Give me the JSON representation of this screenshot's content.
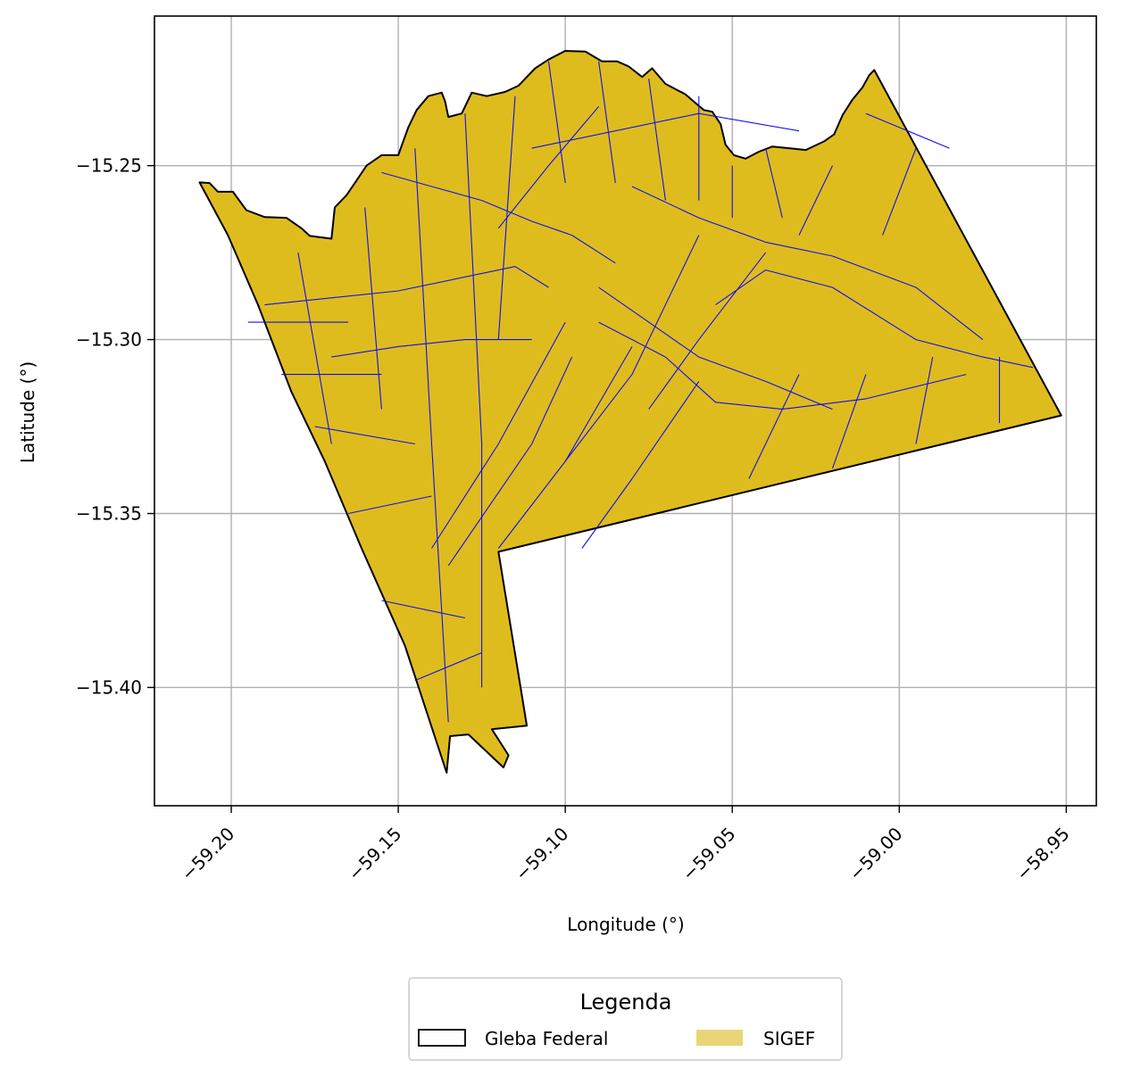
{
  "chart_data": {
    "type": "map",
    "xlabel": "Longitude (°)",
    "ylabel": "Latitude (°)",
    "xlim": [
      -59.223,
      -58.941
    ],
    "ylim": [
      -15.434,
      -15.207
    ],
    "x_ticks": [
      {
        "value": -59.2,
        "label": "−59.20"
      },
      {
        "value": -59.15,
        "label": "−59.15"
      },
      {
        "value": -59.1,
        "label": "−59.10"
      },
      {
        "value": -59.05,
        "label": "−59.05"
      },
      {
        "value": -59.0,
        "label": "−59.00"
      },
      {
        "value": -58.95,
        "label": "−58.95"
      }
    ],
    "y_ticks": [
      {
        "value": -15.25,
        "label": "−15.25"
      },
      {
        "value": -15.3,
        "label": "−15.30"
      },
      {
        "value": -15.35,
        "label": "−15.35"
      },
      {
        "value": -15.4,
        "label": "−15.40"
      }
    ],
    "grid": true,
    "colors": {
      "gleba_fill": "#dfbc1e",
      "gleba_edge": "#000000",
      "sigef_edge": "#1010ee",
      "legend_sigef": "#e8d577",
      "grid": "#b0b0b0"
    },
    "gleba_boundary": [
      [
        -59.2095,
        -15.2548
      ],
      [
        -59.2065,
        -15.255
      ],
      [
        -59.204,
        -15.2575
      ],
      [
        -59.1995,
        -15.2575
      ],
      [
        -59.1955,
        -15.2628
      ],
      [
        -59.19,
        -15.2648
      ],
      [
        -59.1835,
        -15.265
      ],
      [
        -59.179,
        -15.268
      ],
      [
        -59.1765,
        -15.2702
      ],
      [
        -59.17,
        -15.271
      ],
      [
        -59.169,
        -15.262
      ],
      [
        -59.1655,
        -15.2585
      ],
      [
        -59.163,
        -15.255
      ],
      [
        -59.1595,
        -15.25
      ],
      [
        -59.155,
        -15.247
      ],
      [
        -59.15,
        -15.247
      ],
      [
        -59.147,
        -15.239
      ],
      [
        -59.1445,
        -15.234
      ],
      [
        -59.141,
        -15.23
      ],
      [
        -59.137,
        -15.229
      ],
      [
        -59.136,
        -15.2315
      ],
      [
        -59.135,
        -15.236
      ],
      [
        -59.131,
        -15.235
      ],
      [
        -59.128,
        -15.229
      ],
      [
        -59.1235,
        -15.23
      ],
      [
        -59.118,
        -15.2288
      ],
      [
        -59.114,
        -15.227
      ],
      [
        -59.109,
        -15.222
      ],
      [
        -59.105,
        -15.2195
      ],
      [
        -59.1,
        -15.217
      ],
      [
        -59.094,
        -15.2172
      ],
      [
        -59.089,
        -15.22
      ],
      [
        -59.0845,
        -15.22
      ],
      [
        -59.081,
        -15.2215
      ],
      [
        -59.077,
        -15.2245
      ],
      [
        -59.074,
        -15.222
      ],
      [
        -59.07,
        -15.2265
      ],
      [
        -59.064,
        -15.2295
      ],
      [
        -59.061,
        -15.232
      ],
      [
        -59.0585,
        -15.234
      ],
      [
        -59.056,
        -15.2345
      ],
      [
        -59.0535,
        -15.238
      ],
      [
        -59.052,
        -15.244
      ],
      [
        -59.0495,
        -15.247
      ],
      [
        -59.046,
        -15.248
      ],
      [
        -59.042,
        -15.246
      ],
      [
        -59.038,
        -15.2445
      ],
      [
        -59.033,
        -15.245
      ],
      [
        -59.028,
        -15.2455
      ],
      [
        -59.0225,
        -15.243
      ],
      [
        -59.0195,
        -15.241
      ],
      [
        -59.017,
        -15.2355
      ],
      [
        -59.014,
        -15.231
      ],
      [
        -59.011,
        -15.2275
      ],
      [
        -59.009,
        -15.224
      ],
      [
        -59.0075,
        -15.2225
      ],
      [
        -58.9515,
        -15.3218
      ],
      [
        -59.12,
        -15.361
      ],
      [
        -59.1115,
        -15.411
      ],
      [
        -59.122,
        -15.412
      ],
      [
        -59.117,
        -15.4195
      ],
      [
        -59.1185,
        -15.423
      ],
      [
        -59.129,
        -15.4135
      ],
      [
        -59.1345,
        -15.414
      ],
      [
        -59.1355,
        -15.4245
      ],
      [
        -59.148,
        -15.388
      ],
      [
        -59.161,
        -15.36
      ],
      [
        -59.172,
        -15.335
      ],
      [
        -59.182,
        -15.315
      ],
      [
        -59.192,
        -15.29
      ],
      [
        -59.201,
        -15.27
      ],
      [
        -59.2095,
        -15.2548
      ]
    ],
    "sigef_parcels": [
      {
        "type": "line",
        "points": [
          [
            -59.19,
            -15.29
          ],
          [
            -59.15,
            -15.286
          ],
          [
            -59.115,
            -15.279
          ],
          [
            -59.105,
            -15.285
          ]
        ]
      },
      {
        "type": "line",
        "points": [
          [
            -59.155,
            -15.252
          ],
          [
            -59.14,
            -15.256
          ],
          [
            -59.125,
            -15.26
          ],
          [
            -59.11,
            -15.266
          ],
          [
            -59.098,
            -15.27
          ],
          [
            -59.085,
            -15.278
          ]
        ]
      },
      {
        "type": "line",
        "points": [
          [
            -59.08,
            -15.256
          ],
          [
            -59.06,
            -15.265
          ],
          [
            -59.04,
            -15.272
          ],
          [
            -59.02,
            -15.276
          ],
          [
            -58.995,
            -15.285
          ],
          [
            -58.975,
            -15.3
          ]
        ]
      },
      {
        "type": "line",
        "points": [
          [
            -59.09,
            -15.285
          ],
          [
            -59.075,
            -15.295
          ],
          [
            -59.06,
            -15.305
          ],
          [
            -59.04,
            -15.312
          ],
          [
            -59.02,
            -15.32
          ]
        ]
      },
      {
        "type": "line",
        "points": [
          [
            -59.055,
            -15.29
          ],
          [
            -59.04,
            -15.28
          ],
          [
            -59.02,
            -15.285
          ],
          [
            -58.995,
            -15.3
          ],
          [
            -58.975,
            -15.305
          ],
          [
            -58.96,
            -15.308
          ]
        ]
      },
      {
        "type": "line",
        "points": [
          [
            -59.09,
            -15.295
          ],
          [
            -59.07,
            -15.305
          ],
          [
            -59.055,
            -15.318
          ],
          [
            -59.035,
            -15.32
          ],
          [
            -59.01,
            -15.317
          ],
          [
            -58.98,
            -15.31
          ]
        ]
      },
      {
        "type": "line",
        "points": [
          [
            -59.12,
            -15.268
          ],
          [
            -59.105,
            -15.25
          ],
          [
            -59.09,
            -15.233
          ]
        ]
      },
      {
        "type": "line",
        "points": [
          [
            -59.17,
            -15.305
          ],
          [
            -59.15,
            -15.302
          ],
          [
            -59.13,
            -15.3
          ],
          [
            -59.11,
            -15.3
          ]
        ]
      },
      {
        "type": "line",
        "points": [
          [
            -59.1,
            -15.295
          ],
          [
            -59.12,
            -15.33
          ],
          [
            -59.14,
            -15.36
          ]
        ]
      },
      {
        "type": "line",
        "points": [
          [
            -59.098,
            -15.305
          ],
          [
            -59.11,
            -15.33
          ],
          [
            -59.135,
            -15.365
          ]
        ]
      },
      {
        "type": "line",
        "points": [
          [
            -59.08,
            -15.302
          ],
          [
            -59.1,
            -15.335
          ],
          [
            -59.12,
            -15.36
          ]
        ]
      },
      {
        "type": "line",
        "points": [
          [
            -59.06,
            -15.312
          ],
          [
            -59.08,
            -15.34
          ],
          [
            -59.095,
            -15.36
          ]
        ]
      },
      {
        "type": "line",
        "points": [
          [
            -59.06,
            -15.27
          ],
          [
            -59.08,
            -15.31
          ],
          [
            -59.1,
            -15.335
          ]
        ]
      },
      {
        "type": "line",
        "points": [
          [
            -59.04,
            -15.275
          ],
          [
            -59.06,
            -15.3
          ],
          [
            -59.075,
            -15.32
          ]
        ]
      },
      {
        "type": "line",
        "points": [
          [
            -59.03,
            -15.31
          ],
          [
            -59.045,
            -15.34
          ]
        ]
      },
      {
        "type": "line",
        "points": [
          [
            -59.01,
            -15.31
          ],
          [
            -59.02,
            -15.337
          ]
        ]
      },
      {
        "type": "line",
        "points": [
          [
            -58.99,
            -15.305
          ],
          [
            -58.995,
            -15.33
          ]
        ]
      },
      {
        "type": "line",
        "points": [
          [
            -58.97,
            -15.305
          ],
          [
            -58.97,
            -15.324
          ]
        ]
      },
      {
        "type": "line",
        "points": [
          [
            -59.02,
            -15.25
          ],
          [
            -59.03,
            -15.27
          ]
        ]
      },
      {
        "type": "line",
        "points": [
          [
            -58.995,
            -15.245
          ],
          [
            -59.005,
            -15.27
          ]
        ]
      },
      {
        "type": "line",
        "points": [
          [
            -59.05,
            -15.25
          ],
          [
            -59.05,
            -15.265
          ]
        ]
      },
      {
        "type": "line",
        "points": [
          [
            -59.145,
            -15.245
          ],
          [
            -59.14,
            -15.33
          ],
          [
            -59.135,
            -15.41
          ]
        ]
      },
      {
        "type": "line",
        "points": [
          [
            -59.13,
            -15.235
          ],
          [
            -59.125,
            -15.33
          ],
          [
            -59.125,
            -15.4
          ]
        ]
      },
      {
        "type": "line",
        "points": [
          [
            -59.115,
            -15.23
          ],
          [
            -59.12,
            -15.3
          ]
        ]
      },
      {
        "type": "line",
        "points": [
          [
            -59.16,
            -15.262
          ],
          [
            -59.155,
            -15.32
          ]
        ]
      },
      {
        "type": "line",
        "points": [
          [
            -59.18,
            -15.275
          ],
          [
            -59.17,
            -15.33
          ]
        ]
      },
      {
        "type": "line",
        "points": [
          [
            -59.195,
            -15.295
          ],
          [
            -59.165,
            -15.295
          ]
        ]
      },
      {
        "type": "line",
        "points": [
          [
            -59.185,
            -15.31
          ],
          [
            -59.155,
            -15.31
          ]
        ]
      },
      {
        "type": "line",
        "points": [
          [
            -59.175,
            -15.325
          ],
          [
            -59.145,
            -15.33
          ]
        ]
      },
      {
        "type": "line",
        "points": [
          [
            -59.165,
            -15.35
          ],
          [
            -59.14,
            -15.345
          ]
        ]
      },
      {
        "type": "line",
        "points": [
          [
            -59.155,
            -15.375
          ],
          [
            -59.13,
            -15.38
          ]
        ]
      },
      {
        "type": "line",
        "points": [
          [
            -59.145,
            -15.398
          ],
          [
            -59.125,
            -15.39
          ]
        ]
      },
      {
        "type": "line",
        "points": [
          [
            -59.105,
            -15.22
          ],
          [
            -59.1,
            -15.255
          ]
        ]
      },
      {
        "type": "line",
        "points": [
          [
            -59.09,
            -15.22
          ],
          [
            -59.085,
            -15.255
          ]
        ]
      },
      {
        "type": "line",
        "points": [
          [
            -59.075,
            -15.225
          ],
          [
            -59.07,
            -15.26
          ]
        ]
      },
      {
        "type": "line",
        "points": [
          [
            -59.06,
            -15.23
          ],
          [
            -59.06,
            -15.26
          ]
        ]
      },
      {
        "type": "line",
        "points": [
          [
            -59.04,
            -15.245
          ],
          [
            -59.035,
            -15.265
          ]
        ]
      },
      {
        "type": "line",
        "points": [
          [
            -59.01,
            -15.235
          ],
          [
            -58.985,
            -15.245
          ]
        ]
      },
      {
        "type": "line",
        "points": [
          [
            -59.11,
            -15.245
          ],
          [
            -59.06,
            -15.235
          ],
          [
            -59.03,
            -15.24
          ]
        ]
      }
    ],
    "legend": {
      "title": "Legenda",
      "entries": [
        "Gleba Federal",
        "SIGEF"
      ],
      "placement": "bottom-center"
    }
  }
}
